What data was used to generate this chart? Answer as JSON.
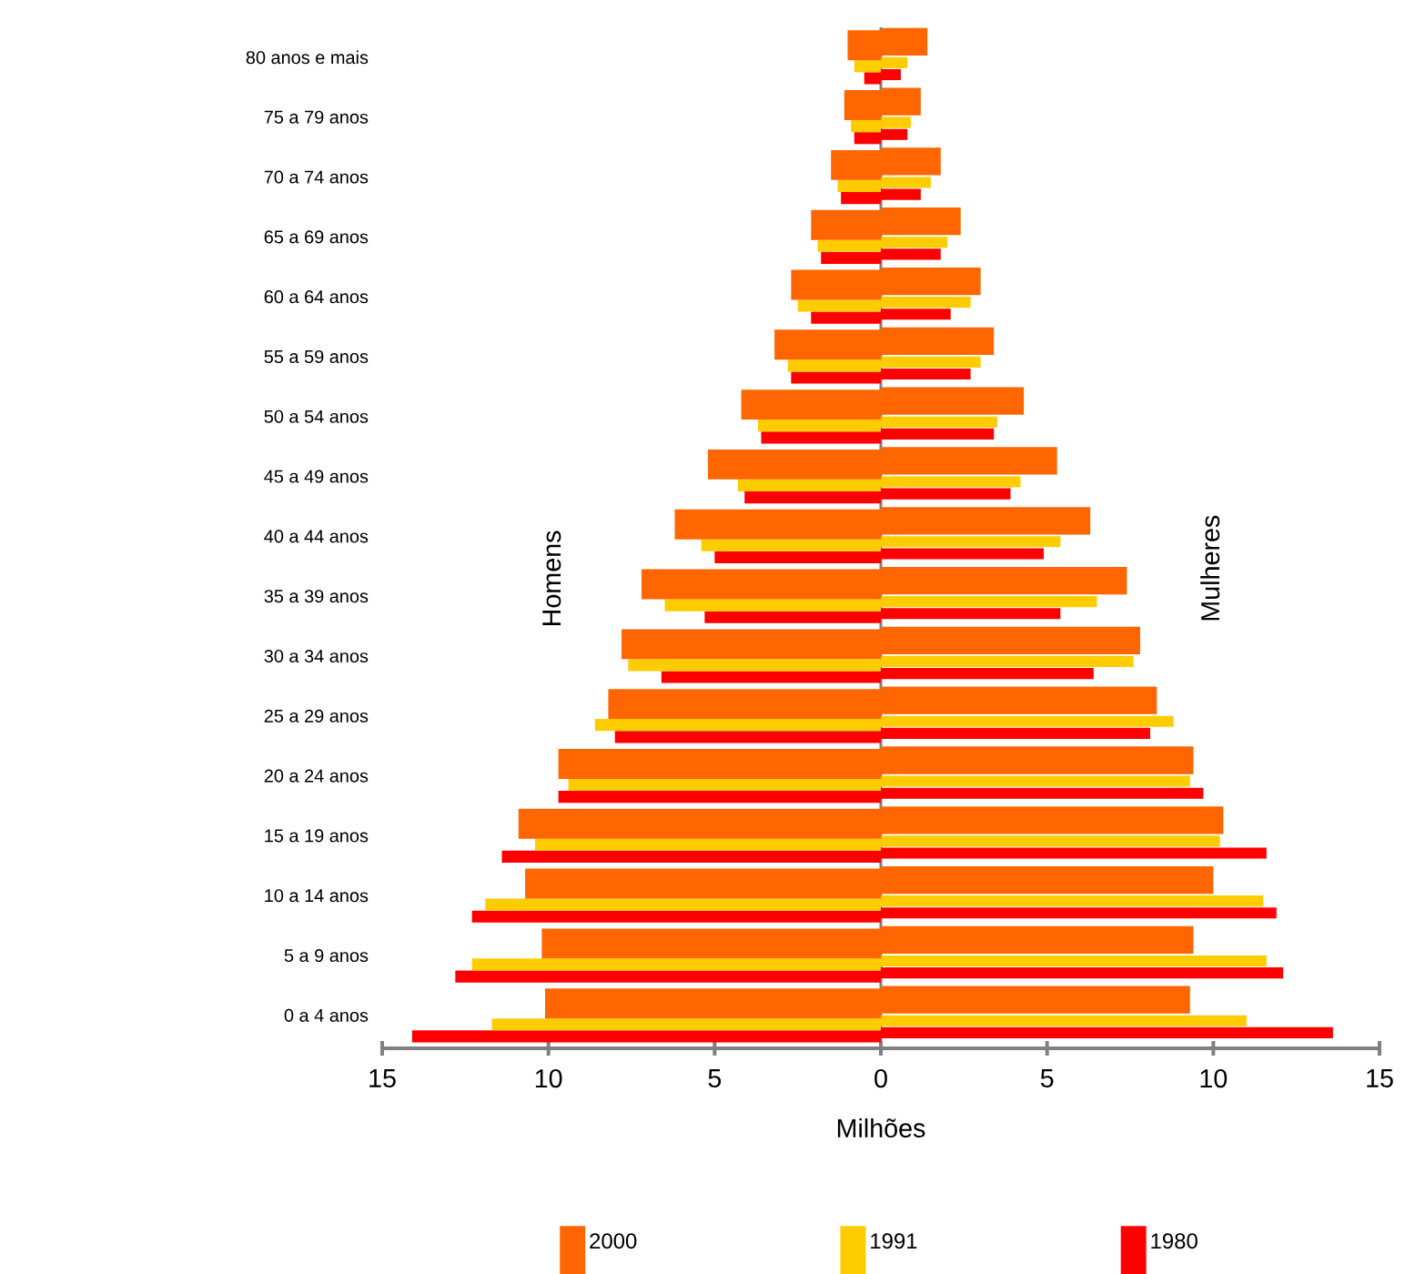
{
  "chart_data": {
    "type": "bar",
    "orientation": "horizontal",
    "xlabel": "Milhões",
    "categories": [
      "80 anos e mais",
      "75 a 79 anos",
      "70 a 74 anos",
      "65 a 69 anos",
      "60 a 64 anos",
      "55 a 59 anos",
      "50 a 54 anos",
      "45 a 49 anos",
      "40 a 44 anos",
      "35 a 39 anos",
      "30 a 34 anos",
      "25 a 29 anos",
      "20 a 24 anos",
      "15 a 19 anos",
      "10 a 14 anos",
      "5 a 9  anos",
      "0 a 4 anos"
    ],
    "series": [
      {
        "name": "2000",
        "color": "#ff6600",
        "values": [
          -1.0,
          -1.1,
          -1.5,
          -2.1,
          -2.7,
          -3.2,
          -4.2,
          -5.2,
          -6.2,
          -7.2,
          -7.8,
          -8.2,
          -9.7,
          -10.9,
          -10.7,
          -10.2,
          -10.1
        ]
      },
      {
        "color": "#ff6600",
        "values": [
          1.4,
          1.2,
          1.8,
          2.4,
          3.0,
          3.4,
          4.3,
          5.3,
          6.3,
          7.4,
          7.8,
          8.3,
          9.4,
          10.3,
          10.0,
          9.4,
          9.3
        ]
      },
      {
        "name": "1991",
        "color": "#ffcc00",
        "values": [
          -0.8,
          -0.9,
          -1.3,
          -1.9,
          -2.5,
          -2.8,
          -3.7,
          -4.3,
          -5.4,
          -6.5,
          -7.6,
          -8.6,
          -9.4,
          -10.4,
          -11.9,
          -12.3,
          -11.7
        ]
      },
      {
        "color": "#ffcc00",
        "values": [
          0.8,
          0.9,
          1.5,
          2.0,
          2.7,
          3.0,
          3.5,
          4.2,
          5.4,
          6.5,
          7.6,
          8.8,
          9.3,
          10.2,
          11.5,
          11.6,
          11.0
        ]
      },
      {
        "name": "1980",
        "color": "#ff0000",
        "values": [
          -0.5,
          -0.8,
          -1.2,
          -1.8,
          -2.1,
          -2.7,
          -3.6,
          -4.1,
          -5.0,
          -5.3,
          -6.6,
          -8.0,
          -9.7,
          -11.4,
          -12.3,
          -12.8,
          -14.1
        ]
      },
      {
        "color": "#ff0000",
        "values": [
          0.6,
          0.8,
          1.2,
          1.8,
          2.1,
          2.7,
          3.4,
          3.9,
          4.9,
          5.4,
          6.4,
          8.1,
          9.7,
          11.6,
          11.9,
          12.1,
          13.6
        ]
      }
    ],
    "xlim": [
      -15,
      15
    ],
    "xticks": [
      {
        "value": -15,
        "label": "15"
      },
      {
        "value": -10,
        "label": "10"
      },
      {
        "value": -5,
        "label": "5"
      },
      0,
      5,
      10,
      15
    ],
    "annotations": [
      "Homens",
      "Mulheres"
    ],
    "legend": "bottom"
  }
}
